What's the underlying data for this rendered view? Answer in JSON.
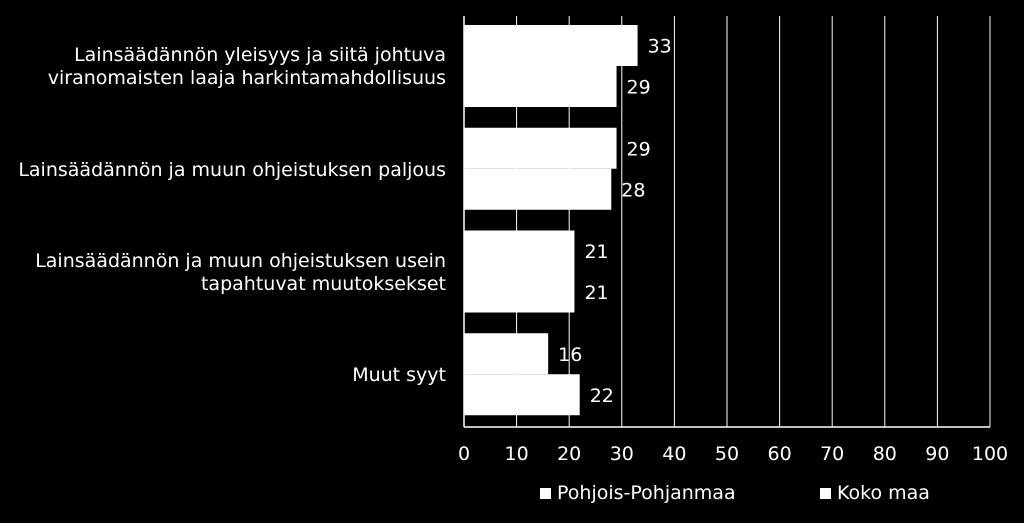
{
  "chart_data": {
    "type": "bar",
    "orientation": "horizontal",
    "categories": [
      [
        "Lainsäädännön yleisyys ja siitä johtuva",
        "viranomaisten laaja harkintamahdollisuus"
      ],
      [
        "Lainsäädännön ja muun ohjeistuksen paljous"
      ],
      [
        "Lainsäädännön ja muun ohjeistuksen usein",
        "tapahtuvat muutoksekset"
      ],
      [
        "Muut syyt"
      ]
    ],
    "series": [
      {
        "name": "Pohjois-Pohjanmaa",
        "values": [
          33,
          29,
          21,
          16
        ]
      },
      {
        "name": "Koko maa",
        "values": [
          29,
          28,
          21,
          22
        ]
      }
    ],
    "xlim": [
      0,
      100
    ],
    "xticks": [
      "0",
      "10",
      "20",
      "30",
      "40",
      "50",
      "60",
      "70",
      "80",
      "90",
      "100"
    ],
    "grid": true,
    "legend_position": "bottom",
    "colors": {
      "background": "#000000",
      "bars": "#ffffff",
      "grid": "#ffffff",
      "text": "#ffffff"
    }
  }
}
